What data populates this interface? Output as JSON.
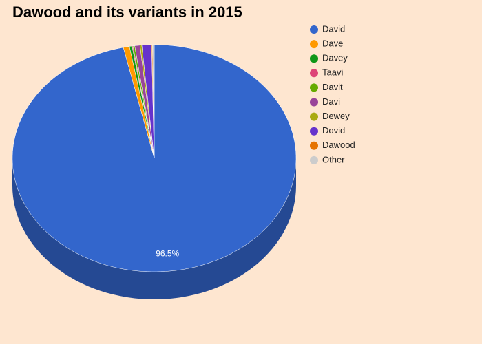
{
  "chart_data": {
    "type": "pie3d",
    "title": "Dawood and its variants in 2015",
    "categories": [
      "David",
      "Dave",
      "Davey",
      "Taavi",
      "Davit",
      "Davi",
      "Dewey",
      "Dovid",
      "Dawood",
      "Other"
    ],
    "values": [
      96.5,
      0.7,
      0.3,
      0.1,
      0.2,
      0.6,
      0.2,
      1.1,
      0.1,
      0.2
    ],
    "value_labels": [
      "96.5%",
      null,
      null,
      null,
      null,
      null,
      null,
      null,
      null,
      null
    ],
    "colors": [
      "#3366cc",
      "#ff9900",
      "#109618",
      "#dd4477",
      "#66aa00",
      "#994499",
      "#aaaa11",
      "#6633cc",
      "#e67300",
      "#cccccc"
    ],
    "legend": "right"
  }
}
